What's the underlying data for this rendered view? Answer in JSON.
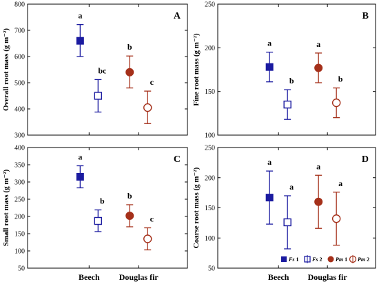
{
  "chart_data": [
    {
      "panel": "A",
      "type": "scatter",
      "ylabel": "Overall root mass (g m⁻²)",
      "ylim": [
        300,
        800
      ],
      "yticks": [
        300,
        400,
        500,
        600,
        700,
        800
      ],
      "categories": [
        "Beech",
        "Douglas fir"
      ],
      "series": [
        {
          "name": "Fs 1",
          "category": "Beech",
          "offset": "left",
          "marker": "filled-square",
          "color": "#1b1ba0",
          "y": 660,
          "err_low": 600,
          "err_high": 722,
          "label": "a"
        },
        {
          "name": "Fs 2",
          "category": "Beech",
          "offset": "right",
          "marker": "open-square",
          "color": "#1b1ba0",
          "y": 450,
          "err_low": 388,
          "err_high": 512,
          "label": "bc"
        },
        {
          "name": "Pm 1",
          "category": "Douglas fir",
          "offset": "left",
          "marker": "filled-circle",
          "color": "#a5301a",
          "y": 540,
          "err_low": 480,
          "err_high": 602,
          "label": "b"
        },
        {
          "name": "Pm 2",
          "category": "Douglas fir",
          "offset": "right",
          "marker": "open-circle",
          "color": "#a5301a",
          "y": 405,
          "err_low": 344,
          "err_high": 468,
          "label": "c"
        }
      ]
    },
    {
      "panel": "B",
      "type": "scatter",
      "ylabel": "Fine root mass (g m⁻²)",
      "ylim": [
        100,
        250
      ],
      "yticks": [
        100,
        150,
        200,
        250
      ],
      "categories": [
        "Beech",
        "Douglas fir"
      ],
      "series": [
        {
          "name": "Fs 1",
          "category": "Beech",
          "offset": "left",
          "marker": "filled-square",
          "color": "#1b1ba0",
          "y": 178,
          "err_low": 161,
          "err_high": 195,
          "label": "a"
        },
        {
          "name": "Fs 2",
          "category": "Beech",
          "offset": "right",
          "marker": "open-square",
          "color": "#1b1ba0",
          "y": 135,
          "err_low": 118,
          "err_high": 152,
          "label": "b"
        },
        {
          "name": "Pm 1",
          "category": "Douglas fir",
          "offset": "left",
          "marker": "filled-circle",
          "color": "#a5301a",
          "y": 177,
          "err_low": 160,
          "err_high": 194,
          "label": "a"
        },
        {
          "name": "Pm 2",
          "category": "Douglas fir",
          "offset": "right",
          "marker": "open-circle",
          "color": "#a5301a",
          "y": 137,
          "err_low": 120,
          "err_high": 154,
          "label": "b"
        }
      ]
    },
    {
      "panel": "C",
      "type": "scatter",
      "ylabel": "Small root mass (g m⁻²)",
      "ylim": [
        50,
        400
      ],
      "yticks": [
        50,
        100,
        150,
        200,
        250,
        300,
        350,
        400
      ],
      "categories": [
        "Beech",
        "Douglas fir"
      ],
      "series": [
        {
          "name": "Fs 1",
          "category": "Beech",
          "offset": "left",
          "marker": "filled-square",
          "color": "#1b1ba0",
          "y": 315,
          "err_low": 283,
          "err_high": 347,
          "label": "a"
        },
        {
          "name": "Fs 2",
          "category": "Beech",
          "offset": "right",
          "marker": "open-square",
          "color": "#1b1ba0",
          "y": 187,
          "err_low": 156,
          "err_high": 219,
          "label": "b"
        },
        {
          "name": "Pm 1",
          "category": "Douglas fir",
          "offset": "left",
          "marker": "filled-circle",
          "color": "#a5301a",
          "y": 202,
          "err_low": 170,
          "err_high": 234,
          "label": "b"
        },
        {
          "name": "Pm 2",
          "category": "Douglas fir",
          "offset": "right",
          "marker": "open-circle",
          "color": "#a5301a",
          "y": 135,
          "err_low": 103,
          "err_high": 167,
          "label": "c"
        }
      ]
    },
    {
      "panel": "D",
      "type": "scatter",
      "ylabel": "Coarse root mass (g m⁻²)",
      "ylim": [
        50,
        250
      ],
      "yticks": [
        50,
        100,
        150,
        200,
        250
      ],
      "categories": [
        "Beech",
        "Douglas fir"
      ],
      "series": [
        {
          "name": "Fs 1",
          "category": "Beech",
          "offset": "left",
          "marker": "filled-square",
          "color": "#1b1ba0",
          "y": 167,
          "err_low": 123,
          "err_high": 211,
          "label": "a"
        },
        {
          "name": "Fs 2",
          "category": "Beech",
          "offset": "right",
          "marker": "open-square",
          "color": "#1b1ba0",
          "y": 126,
          "err_low": 82,
          "err_high": 170,
          "label": "a"
        },
        {
          "name": "Pm 1",
          "category": "Douglas fir",
          "offset": "left",
          "marker": "filled-circle",
          "color": "#a5301a",
          "y": 160,
          "err_low": 116,
          "err_high": 204,
          "label": "a"
        },
        {
          "name": "Pm 2",
          "category": "Douglas fir",
          "offset": "right",
          "marker": "open-circle",
          "color": "#a5301a",
          "y": 132,
          "err_low": 88,
          "err_high": 176,
          "label": "a"
        }
      ]
    }
  ],
  "legend": {
    "placement": "bottom-right of panel D",
    "entries": [
      {
        "name": "Fs 1",
        "marker": "filled-square",
        "color": "#1b1ba0"
      },
      {
        "name": "Fs 2",
        "marker": "open-square",
        "color": "#1b1ba0"
      },
      {
        "name": "Pm 1",
        "marker": "filled-circle",
        "color": "#a5301a"
      },
      {
        "name": "Pm 2",
        "marker": "open-circle",
        "color": "#a5301a"
      }
    ]
  },
  "x_labels": [
    "Beech",
    "Douglas fir"
  ]
}
